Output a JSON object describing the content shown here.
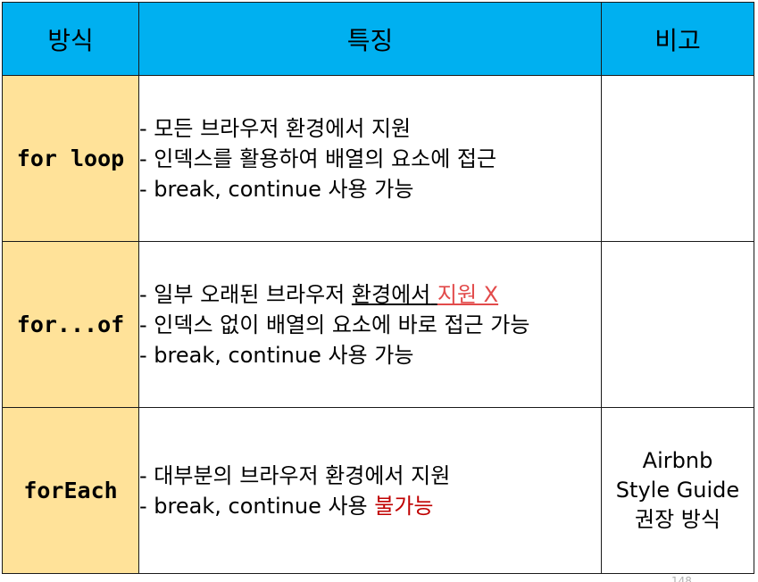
{
  "header": {
    "col_method": "방식",
    "col_feature": "특징",
    "col_note": "비고"
  },
  "rows": [
    {
      "method": "for loop",
      "features": [
        "- 모든 브라우저 환경에서 지원",
        "- 인덱스를 활용하여 배열의 요소에 접근",
        "- break, continue 사용 가능"
      ],
      "note": ""
    },
    {
      "method": "for...of",
      "feature1_prefix": "- 일부 오래된 브라우저 ",
      "feature1_underlined": "환경에서",
      "feature1_space": " ",
      "feature1_red": "지원 X",
      "features": [
        "- 인덱스 없이 배열의 요소에 바로 접근 가능",
        "- break, continue 사용 가능"
      ],
      "note": ""
    },
    {
      "method": "forEach",
      "features": [
        "- 대부분의 브라우저 환경에서 지원"
      ],
      "feature2_prefix": "- break, continue 사용 ",
      "feature2_red": "불가능",
      "note_lines": [
        "Airbnb",
        "Style Guide",
        "권장 방식"
      ]
    }
  ],
  "page_number": "148",
  "colors": {
    "header_bg": "#00b0f0",
    "method_bg": "#ffe299",
    "red_light": "#e24a4a",
    "red_dark": "#c00000"
  }
}
